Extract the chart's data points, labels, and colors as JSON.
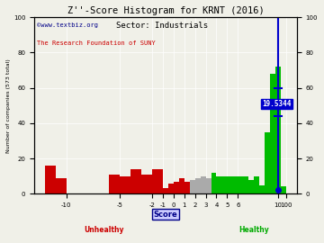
{
  "title": "Z''-Score Histogram for KRNT (2016)",
  "subtitle": "Sector: Industrials",
  "watermark1": "©www.textbiz.org",
  "watermark2": "The Research Foundation of SUNY",
  "ylabel_left": "Number of companies (573 total)",
  "xlabel": "Score",
  "xlabel_unhealthy": "Unhealthy",
  "xlabel_healthy": "Healthy",
  "annotation": "19.5344",
  "bars": [
    [
      -12,
      -11,
      16,
      "#cc0000"
    ],
    [
      -11,
      -10,
      9,
      "#cc0000"
    ],
    [
      -6,
      -5,
      11,
      "#cc0000"
    ],
    [
      -5,
      -4,
      10,
      "#cc0000"
    ],
    [
      -4,
      -3,
      14,
      "#cc0000"
    ],
    [
      -3,
      -2,
      11,
      "#cc0000"
    ],
    [
      -2,
      -1,
      14,
      "#cc0000"
    ],
    [
      -1,
      -0.5,
      3,
      "#cc0000"
    ],
    [
      -0.5,
      0,
      6,
      "#cc0000"
    ],
    [
      0,
      0.5,
      7,
      "#cc0000"
    ],
    [
      0.5,
      1.0,
      9,
      "#cc0000"
    ],
    [
      1.0,
      1.5,
      7,
      "#cc0000"
    ],
    [
      1.5,
      2.0,
      8,
      "#aaaaaa"
    ],
    [
      2.0,
      2.5,
      9,
      "#aaaaaa"
    ],
    [
      2.5,
      3.0,
      10,
      "#aaaaaa"
    ],
    [
      3.0,
      3.5,
      9,
      "#aaaaaa"
    ],
    [
      3.5,
      4.0,
      12,
      "#00bb00"
    ],
    [
      4.0,
      4.5,
      10,
      "#00bb00"
    ],
    [
      4.5,
      5.0,
      10,
      "#00bb00"
    ],
    [
      5.0,
      5.5,
      10,
      "#00bb00"
    ],
    [
      5.5,
      6.0,
      10,
      "#00bb00"
    ],
    [
      6.0,
      6.5,
      10,
      "#00bb00"
    ],
    [
      6.5,
      7.0,
      10,
      "#00bb00"
    ],
    [
      7.0,
      7.5,
      8,
      "#00bb00"
    ],
    [
      7.5,
      8.0,
      10,
      "#00bb00"
    ],
    [
      8.0,
      8.5,
      5,
      "#00bb00"
    ],
    [
      8.5,
      9.0,
      35,
      "#00bb00"
    ],
    [
      9.0,
      9.5,
      68,
      "#00bb00"
    ],
    [
      9.5,
      10.0,
      72,
      "#00bb00"
    ],
    [
      10.0,
      10.5,
      4,
      "#00bb00"
    ]
  ],
  "marker_x": 9.75,
  "marker_color": "#0000cc",
  "xlim": [
    -13,
    11.5
  ],
  "ylim": [
    0,
    100
  ],
  "xtick_pos": [
    -10,
    -5,
    -2,
    -1,
    0,
    1,
    2,
    3,
    4,
    5,
    6,
    9.75,
    10.5
  ],
  "xtick_labels": [
    "-10",
    "-5",
    "-2",
    "-1",
    "0",
    "1",
    "2",
    "3",
    "4",
    "5",
    "6",
    "10",
    "100"
  ],
  "yticks": [
    0,
    20,
    40,
    60,
    80,
    100
  ],
  "bg_color": "#f0f0e8",
  "watermark1_color": "#000088",
  "watermark2_color": "#cc0000"
}
